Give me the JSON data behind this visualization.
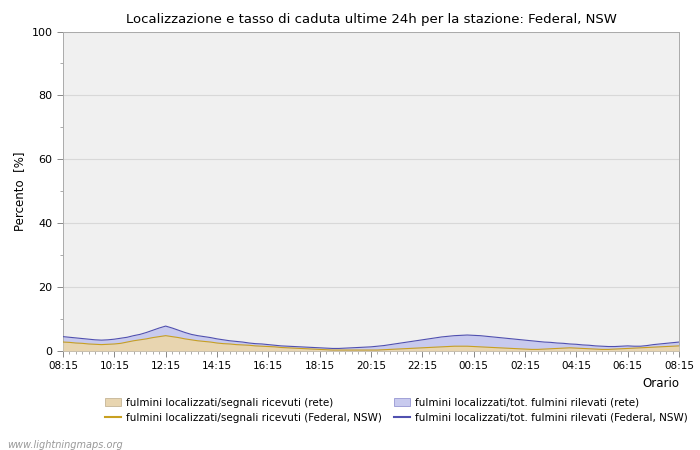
{
  "title": "Localizzazione e tasso di caduta ultime 24h per la stazione: Federal, NSW",
  "ylabel": "Percento  [%]",
  "xlabel": "Orario",
  "watermark": "www.lightningmaps.org",
  "ylim": [
    0,
    100
  ],
  "yticks": [
    0,
    20,
    40,
    60,
    80,
    100
  ],
  "yticks_minor": [
    10,
    30,
    50,
    70,
    90
  ],
  "x_labels": [
    "08:15",
    "10:15",
    "12:15",
    "14:15",
    "16:15",
    "18:15",
    "20:15",
    "22:15",
    "00:15",
    "02:15",
    "04:15",
    "06:15",
    "08:15"
  ],
  "fill_rete_color": "#e8d5b0",
  "fill_tot_color": "#c8caee",
  "line_rete_color": "#c8a020",
  "line_nsw_color": "#5050b0",
  "background_color": "#ffffff",
  "plot_bg_color": "#f0f0f0",
  "grid_color": "#d8d8d8",
  "legend_labels": [
    "fulmini localizzati/segnali ricevuti (rete)",
    "fulmini localizzati/segnali ricevuti (Federal, NSW)",
    "fulmini localizzati/tot. fulmini rilevati (rete)",
    "fulmini localizzati/tot. fulmini rilevati (Federal, NSW)"
  ],
  "n_points": 97,
  "rete_fill_data": [
    2.8,
    2.7,
    2.5,
    2.4,
    2.2,
    2.1,
    2.0,
    2.1,
    2.2,
    2.4,
    2.8,
    3.2,
    3.5,
    3.8,
    4.2,
    4.5,
    4.8,
    4.5,
    4.2,
    3.8,
    3.5,
    3.2,
    3.0,
    2.8,
    2.5,
    2.3,
    2.2,
    2.0,
    1.9,
    1.8,
    1.6,
    1.5,
    1.4,
    1.3,
    1.1,
    1.0,
    0.9,
    0.8,
    0.7,
    0.6,
    0.5,
    0.4,
    0.3,
    0.3,
    0.3,
    0.3,
    0.3,
    0.3,
    0.3,
    0.3,
    0.4,
    0.5,
    0.6,
    0.7,
    0.8,
    0.9,
    1.0,
    1.1,
    1.2,
    1.3,
    1.4,
    1.5,
    1.5,
    1.5,
    1.4,
    1.3,
    1.2,
    1.1,
    1.0,
    0.9,
    0.8,
    0.7,
    0.6,
    0.5,
    0.5,
    0.6,
    0.7,
    0.8,
    0.9,
    1.0,
    0.9,
    0.8,
    0.7,
    0.6,
    0.5,
    0.5,
    0.6,
    0.7,
    0.8,
    0.9,
    1.0,
    1.1,
    1.2,
    1.3,
    1.4,
    1.5,
    1.6
  ],
  "tot_fill_data": [
    4.5,
    4.3,
    4.1,
    3.9,
    3.7,
    3.5,
    3.4,
    3.5,
    3.7,
    4.0,
    4.3,
    4.8,
    5.2,
    5.8,
    6.5,
    7.2,
    7.8,
    7.2,
    6.5,
    5.8,
    5.2,
    4.8,
    4.5,
    4.2,
    3.8,
    3.5,
    3.2,
    3.0,
    2.8,
    2.5,
    2.3,
    2.2,
    2.0,
    1.8,
    1.6,
    1.5,
    1.4,
    1.3,
    1.2,
    1.1,
    1.0,
    0.9,
    0.8,
    0.8,
    0.9,
    1.0,
    1.1,
    1.2,
    1.3,
    1.5,
    1.7,
    2.0,
    2.3,
    2.6,
    2.9,
    3.2,
    3.5,
    3.8,
    4.1,
    4.4,
    4.6,
    4.8,
    4.9,
    5.0,
    4.9,
    4.8,
    4.6,
    4.4,
    4.2,
    4.0,
    3.8,
    3.6,
    3.4,
    3.2,
    3.0,
    2.8,
    2.7,
    2.5,
    2.4,
    2.2,
    2.1,
    1.9,
    1.8,
    1.6,
    1.5,
    1.4,
    1.4,
    1.5,
    1.6,
    1.5,
    1.5,
    1.7,
    2.0,
    2.2,
    2.4,
    2.6,
    2.8
  ]
}
